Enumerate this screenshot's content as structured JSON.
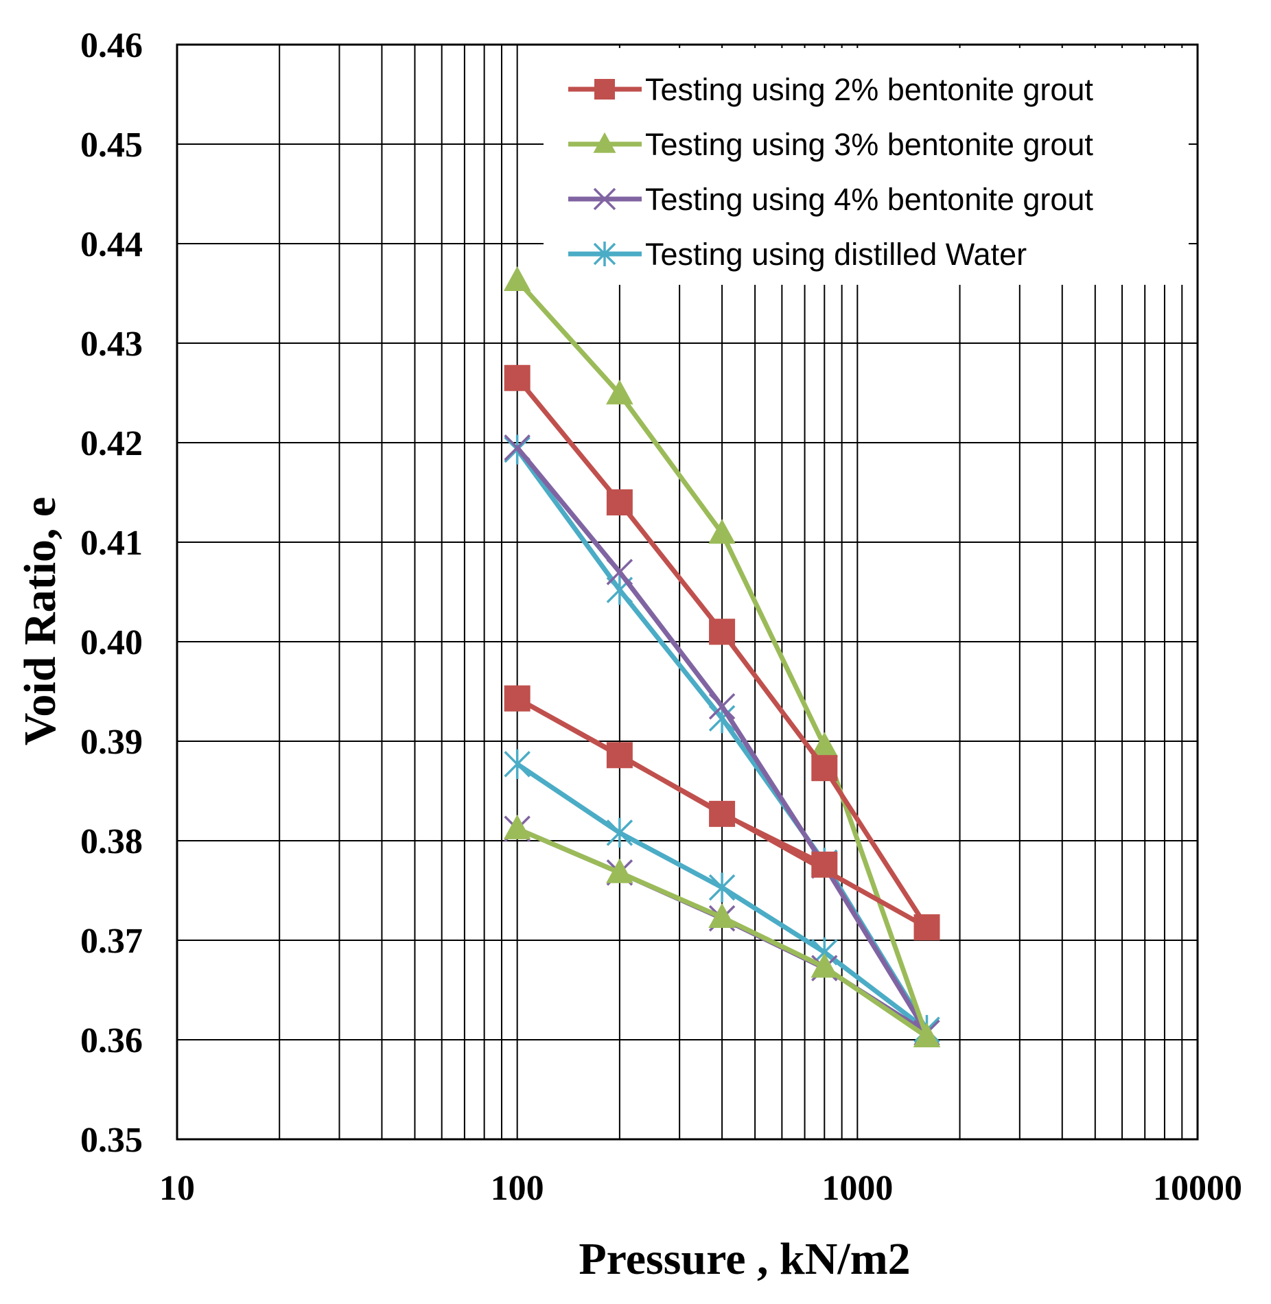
{
  "chart_data": {
    "type": "line",
    "title": "",
    "xlabel": "Pressure , kN/m2",
    "ylabel": "Void Ratio, e",
    "xscale": "log",
    "xlim": [
      10,
      10000
    ],
    "ylim": [
      0.35,
      0.46
    ],
    "x_ticks": [
      10,
      100,
      1000,
      10000
    ],
    "x_tick_labels": [
      "10",
      "100",
      "1000",
      "10000"
    ],
    "y_ticks": [
      0.35,
      0.36,
      0.37,
      0.38,
      0.39,
      0.4,
      0.41,
      0.42,
      0.43,
      0.44,
      0.45,
      0.46
    ],
    "y_tick_labels": [
      "0.35",
      "0.36",
      "0.37",
      "0.38",
      "0.39",
      "0.40",
      "0.41",
      "0.42",
      "0.43",
      "0.44",
      "0.45",
      "0.46"
    ],
    "grid": true,
    "legend_position": "top-right",
    "series": [
      {
        "name": "Testing using 2% bentonite grout",
        "color": "#c0504d",
        "marker": "square",
        "x": [
          100,
          200,
          400,
          800,
          1600,
          100,
          200,
          400,
          800
        ],
        "y": [
          0.4265,
          0.414,
          0.401,
          0.3873,
          0.3713,
          0.3943,
          0.3886,
          0.3827,
          0.3776
        ]
      },
      {
        "name": "Testing using 3% bentonite grout",
        "color": "#9bbb59",
        "marker": "triangle",
        "x": [
          100,
          200,
          400,
          800,
          1600,
          800,
          400,
          200,
          100
        ],
        "y": [
          0.4363,
          0.4249,
          0.4109,
          0.3895,
          0.3603,
          0.3673,
          0.3723,
          0.3768,
          0.3812
        ]
      },
      {
        "name": "Testing using 4% bentonite grout",
        "color": "#8064a2",
        "marker": "x",
        "x": [
          100,
          200,
          400,
          800,
          1600,
          800,
          400,
          200,
          100
        ],
        "y": [
          0.4195,
          0.407,
          0.3935,
          0.3775,
          0.3607,
          0.3672,
          0.3722,
          0.3768,
          0.3812
        ]
      },
      {
        "name": "Testing using distilled Water",
        "color": "#4bacc6",
        "marker": "star",
        "x": [
          100,
          200,
          400,
          800,
          1600,
          800,
          400,
          200,
          100
        ],
        "y": [
          0.4193,
          0.4052,
          0.3923,
          0.3778,
          0.361,
          0.3688,
          0.3753,
          0.3808,
          0.3877
        ]
      }
    ]
  }
}
